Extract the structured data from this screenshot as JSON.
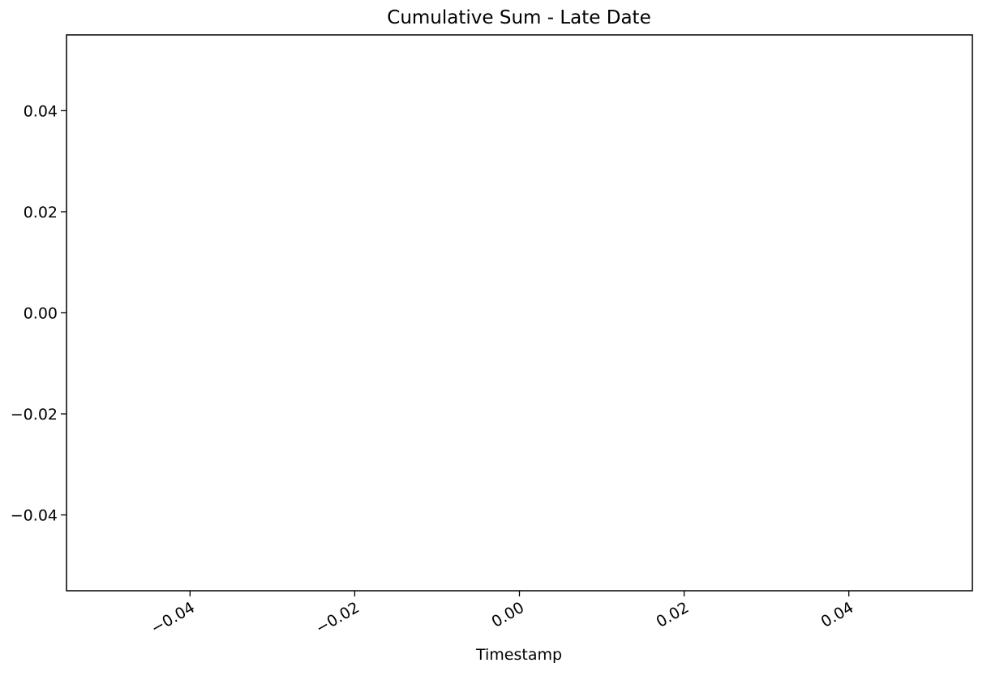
{
  "chart_data": {
    "type": "line",
    "title": "Cumulative Sum - Late Date",
    "xlabel": "Timestamp",
    "ylabel": "",
    "x": [],
    "series": [],
    "xlim": [
      -0.055,
      0.055
    ],
    "ylim": [
      -0.055,
      0.055
    ],
    "xticks": [
      -0.04,
      -0.02,
      0.0,
      0.02,
      0.04
    ],
    "xtick_labels": [
      "−0.04",
      "−0.02",
      "0.00",
      "0.02",
      "0.04"
    ],
    "yticks": [
      0.04,
      0.02,
      0.0,
      -0.02,
      -0.04
    ],
    "ytick_labels": [
      "0.04",
      "0.02",
      "0.00",
      "−0.02",
      "−0.04"
    ],
    "grid": false,
    "legend": "none"
  },
  "colors": {
    "axes": "#000000",
    "background": "#ffffff"
  }
}
